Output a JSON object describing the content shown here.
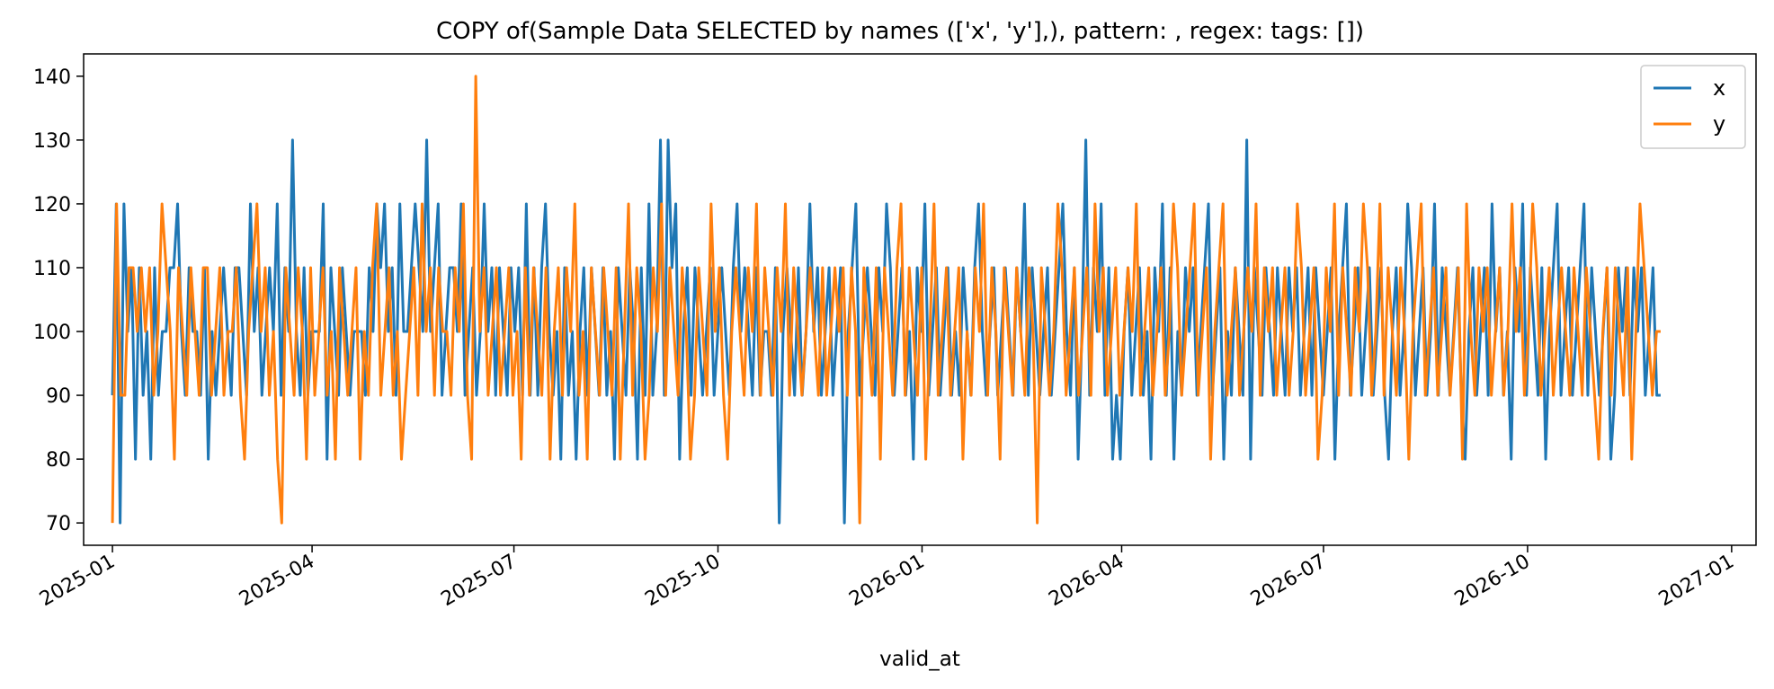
{
  "chart_data": {
    "type": "line",
    "title": "COPY of(Sample Data SELECTED by names (['x', 'y'],), pattern: , regex:  tags: [])",
    "xlabel": "valid_at",
    "ylabel": "",
    "x_start": "2025-01-01",
    "x_end": "2026-11-30",
    "xlim": [
      "2024-12-19",
      "2027-01-12"
    ],
    "ylim": [
      66.5,
      143.5
    ],
    "x_ticks": [
      "2025-01",
      "2025-04",
      "2025-07",
      "2025-10",
      "2026-01",
      "2026-04",
      "2026-07",
      "2026-10",
      "2027-01"
    ],
    "y_ticks": [
      70,
      80,
      90,
      100,
      110,
      120,
      130,
      140
    ],
    "grid": false,
    "legend_position": "top-right",
    "series": [
      {
        "name": "x",
        "color": "#1f77b4",
        "values": [
          90,
          120,
          70,
          120,
          100,
          110,
          80,
          110,
          90,
          100,
          80,
          110,
          90,
          100,
          100,
          110,
          110,
          120,
          100,
          90,
          110,
          100,
          100,
          90,
          110,
          80,
          100,
          90,
          100,
          110,
          100,
          90,
          110,
          110,
          100,
          90,
          120,
          100,
          110,
          90,
          100,
          110,
          100,
          120,
          90,
          110,
          100,
          130,
          100,
          90,
          110,
          90,
          100,
          100,
          100,
          120,
          80,
          110,
          100,
          90,
          110,
          100,
          90,
          100,
          100,
          100,
          90,
          110,
          100,
          120,
          110,
          120,
          100,
          110,
          90,
          120,
          100,
          100,
          110,
          120,
          110,
          100,
          130,
          100,
          110,
          120,
          90,
          100,
          110,
          110,
          100,
          120,
          90,
          100,
          110,
          90,
          100,
          120,
          100,
          110,
          90,
          110,
          100,
          90,
          110,
          100,
          110,
          90,
          120,
          90,
          110,
          90,
          110,
          120,
          100,
          90,
          100,
          80,
          110,
          90,
          100,
          80,
          100,
          110,
          90,
          110,
          100,
          90,
          110,
          90,
          100,
          80,
          110,
          100,
          90,
          110,
          100,
          80,
          110,
          90,
          120,
          90,
          100,
          130,
          90,
          130,
          110,
          120,
          80,
          100,
          110,
          90,
          110,
          100,
          90,
          100,
          110,
          90,
          100,
          110,
          100,
          90,
          110,
          120,
          100,
          110,
          100,
          90,
          110,
          90,
          100,
          100,
          90,
          110,
          70,
          100,
          110,
          100,
          90,
          110,
          90,
          100,
          120,
          100,
          110,
          90,
          100,
          110,
          90,
          100,
          110,
          70,
          100,
          110,
          120,
          90,
          100,
          110,
          100,
          90,
          110,
          100,
          120,
          110,
          90,
          100,
          110,
          90,
          100,
          80,
          110,
          100,
          120,
          90,
          100,
          110,
          90,
          100,
          110,
          90,
          100,
          90,
          110,
          100,
          90,
          110,
          120,
          100,
          90,
          100,
          110,
          90,
          100,
          110,
          100,
          90,
          110,
          100,
          120,
          90,
          110,
          100,
          90,
          100,
          110,
          90,
          100,
          110,
          120,
          100,
          90,
          110,
          80,
          100,
          130,
          90,
          110,
          100,
          120,
          90,
          110,
          80,
          90,
          80,
          100,
          110,
          90,
          100,
          110,
          90,
          100,
          80,
          110,
          100,
          120,
          90,
          110,
          80,
          100,
          90,
          110,
          100,
          110,
          90,
          100,
          110,
          120,
          90,
          100,
          110,
          80,
          100,
          90,
          110,
          100,
          90,
          130,
          80,
          110,
          100,
          90,
          110,
          100,
          90,
          110,
          100,
          90,
          110,
          100,
          110,
          90,
          100,
          110,
          90,
          110,
          100,
          90,
          100,
          110,
          80,
          100,
          110,
          120,
          90,
          100,
          110,
          90,
          100,
          110,
          90,
          100,
          110,
          90,
          80,
          100,
          110,
          90,
          100,
          120,
          110,
          90,
          100,
          110,
          90,
          100,
          120,
          90,
          110,
          100,
          90,
          100,
          110,
          90,
          80,
          100,
          110,
          90,
          100,
          110,
          90,
          120,
          100,
          110,
          90,
          100,
          80,
          110,
          100,
          120,
          90,
          110,
          100,
          90,
          110,
          80,
          100,
          110,
          120,
          90,
          100,
          110,
          90,
          100,
          110,
          120,
          90,
          110,
          100,
          90,
          100,
          110,
          80,
          90,
          110,
          100,
          110,
          90,
          110,
          100,
          110,
          90,
          100,
          110,
          90,
          90
        ]
      },
      {
        "name": "y",
        "color": "#ff7f0e",
        "values": [
          70,
          120,
          90,
          90,
          110,
          110,
          100,
          110,
          100,
          110,
          90,
          100,
          120,
          110,
          100,
          80,
          110,
          100,
          90,
          110,
          100,
          90,
          110,
          110,
          90,
          100,
          110,
          90,
          100,
          100,
          110,
          90,
          80,
          100,
          110,
          120,
          100,
          110,
          90,
          100,
          80,
          70,
          110,
          100,
          90,
          110,
          100,
          80,
          110,
          90,
          100,
          110,
          90,
          100,
          80,
          110,
          100,
          90,
          100,
          110,
          80,
          100,
          90,
          110,
          120,
          90,
          100,
          110,
          90,
          100,
          80,
          90,
          100,
          110,
          90,
          120,
          100,
          110,
          90,
          110,
          100,
          100,
          90,
          110,
          100,
          120,
          90,
          80,
          140,
          100,
          110,
          90,
          100,
          110,
          90,
          100,
          110,
          90,
          100,
          80,
          110,
          90,
          110,
          100,
          90,
          110,
          80,
          100,
          110,
          90,
          110,
          100,
          120,
          90,
          100,
          80,
          110,
          100,
          90,
          110,
          100,
          90,
          110,
          80,
          100,
          120,
          90,
          110,
          100,
          80,
          90,
          110,
          100,
          120,
          90,
          110,
          100,
          90,
          110,
          100,
          80,
          90,
          110,
          100,
          90,
          120,
          100,
          110,
          90,
          80,
          100,
          110,
          100,
          90,
          110,
          100,
          120,
          90,
          110,
          100,
          90,
          110,
          100,
          120,
          90,
          110,
          100,
          90,
          100,
          110,
          100,
          90,
          110,
          90,
          100,
          110,
          100,
          110,
          90,
          110,
          100,
          70,
          110,
          100,
          90,
          110,
          80,
          110,
          100,
          90,
          110,
          120,
          90,
          110,
          100,
          90,
          110,
          80,
          100,
          120,
          90,
          100,
          110,
          90,
          100,
          110,
          80,
          100,
          90,
          110,
          100,
          120,
          90,
          110,
          100,
          80,
          110,
          100,
          90,
          110,
          100,
          90,
          110,
          100,
          70,
          110,
          100,
          90,
          100,
          120,
          110,
          90,
          100,
          110,
          90,
          100,
          110,
          90,
          120,
          100,
          110,
          90,
          100,
          110,
          90,
          100,
          110,
          100,
          120,
          90,
          100,
          110,
          90,
          100,
          110,
          90,
          100,
          120,
          110,
          90,
          100,
          110,
          120,
          90,
          100,
          110,
          80,
          100,
          110,
          120,
          90,
          100,
          110,
          90,
          100,
          110,
          100,
          120,
          90,
          110,
          100,
          110,
          90,
          100,
          110,
          90,
          100,
          120,
          110,
          90,
          100,
          110,
          80,
          90,
          110,
          100,
          120,
          90,
          110,
          100,
          90,
          110,
          100,
          120,
          110,
          90,
          100,
          120,
          90,
          110,
          100,
          90,
          110,
          100,
          80,
          100,
          110,
          120,
          90,
          100,
          110,
          90,
          100,
          110,
          90,
          100,
          110,
          80,
          120,
          100,
          90,
          110,
          100,
          110,
          90,
          100,
          110,
          90,
          100,
          120,
          100,
          110,
          90,
          100,
          120,
          110,
          90,
          100,
          110,
          90,
          100,
          110,
          100,
          90,
          110,
          100,
          90,
          110,
          100,
          90,
          80,
          100,
          110,
          90,
          110,
          100,
          90,
          110,
          80,
          100,
          120,
          110,
          100,
          90,
          100,
          100
        ]
      }
    ]
  }
}
